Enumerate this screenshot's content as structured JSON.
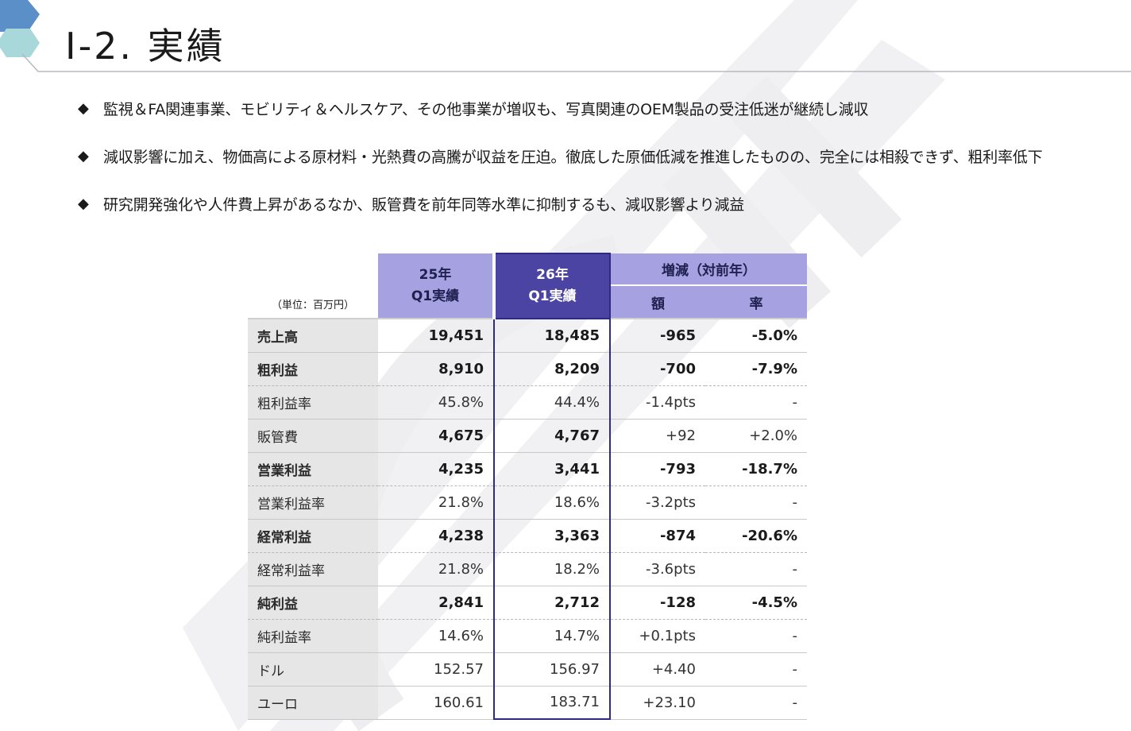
{
  "header": {
    "title": "Ⅰ-2. 実績"
  },
  "bullets": [
    {
      "marker": "◆",
      "text": "監視＆FA関連事業、モビリティ＆ヘルスケア、その他事業が増収も、写真関連のOEM製品の受注低迷が継続し減収"
    },
    {
      "marker": "◆",
      "text": "減収影響に加え、物価高による原材料・光熱費の高騰が収益を圧迫。徹底した原価低減を推進したものの、完全には相殺できず、粗利率低下"
    },
    {
      "marker": "◆",
      "text": "研究開発強化や人件費上昇があるなか、販管費を前年同等水準に抑制するも、減収影響より減益"
    }
  ],
  "table": {
    "unit_label": "（単位：百万円）",
    "col_prev_line1": "25年",
    "col_prev_line2": "Q1実績",
    "col_cur_line1": "26年",
    "col_cur_line2": "Q1実績",
    "col_diff_group": "増減（対前年）",
    "col_diff_amount": "額",
    "col_diff_rate": "率",
    "rows": [
      {
        "label": "売上高",
        "prev": "19,451",
        "cur": "18,485",
        "diff": "-965",
        "rate": "-5.0%",
        "bold": true
      },
      {
        "label": "粗利益",
        "prev": "8,910",
        "cur": "8,209",
        "diff": "-700",
        "rate": "-7.9%",
        "bold": true
      },
      {
        "label": "粗利益率",
        "prev": "45.8%",
        "cur": "44.4%",
        "diff": "-1.4pts",
        "rate": "-",
        "bold": false
      },
      {
        "label": "販管費",
        "prev": "4,675",
        "cur": "4,767",
        "diff": "+92",
        "rate": "+2.0%",
        "bold": false
      },
      {
        "label": "営業利益",
        "prev": "4,235",
        "cur": "3,441",
        "diff": "-793",
        "rate": "-18.7%",
        "bold": true
      },
      {
        "label": "営業利益率",
        "prev": "21.8%",
        "cur": "18.6%",
        "diff": "-3.2pts",
        "rate": "-",
        "bold": false
      },
      {
        "label": "経常利益",
        "prev": "4,238",
        "cur": "3,363",
        "diff": "-874",
        "rate": "-20.6%",
        "bold": true
      },
      {
        "label": "経常利益率",
        "prev": "21.8%",
        "cur": "18.2%",
        "diff": "-3.6pts",
        "rate": "-",
        "bold": false
      },
      {
        "label": "純利益",
        "prev": "2,841",
        "cur": "2,712",
        "diff": "-128",
        "rate": "-4.5%",
        "bold": true
      },
      {
        "label": "純利益率",
        "prev": "14.6%",
        "cur": "14.7%",
        "diff": "+0.1pts",
        "rate": "-",
        "bold": false
      },
      {
        "label": "ドル",
        "prev": "152.57",
        "cur": "156.97",
        "diff": "+4.40",
        "rate": "-",
        "bold": false
      },
      {
        "label": "ユーロ",
        "prev": "160.61",
        "cur": "183.71",
        "diff": "+23.10",
        "rate": "-",
        "bold": false
      }
    ]
  },
  "colors": {
    "header_light": "#a6a2e2",
    "header_dark": "#4b44a2",
    "label_bg": "#e6e6e6",
    "hexagon_blue": "#5b8fc7",
    "hexagon_teal": "#a9d8da"
  }
}
